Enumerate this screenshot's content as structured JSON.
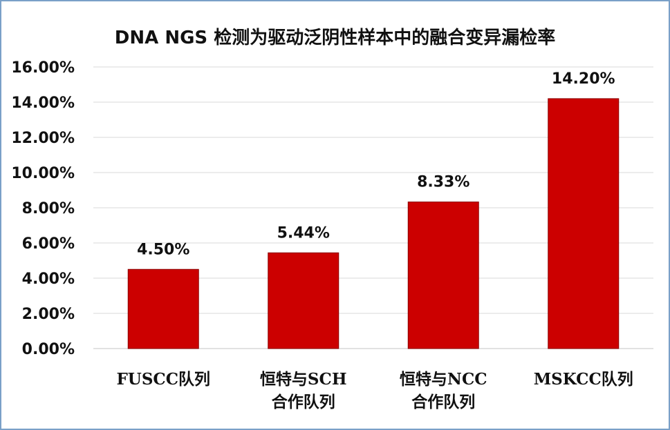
{
  "chart_data": {
    "type": "bar",
    "title": "DNA NGS 检测为驱动泛阴性样本中的融合变异漏检率",
    "categories": [
      [
        "FUSCC队列"
      ],
      [
        "恒特与SCH",
        "合作队列"
      ],
      [
        "恒特与NCC",
        "合作队列"
      ],
      [
        "MSKCC队列"
      ]
    ],
    "values": [
      4.5,
      5.44,
      8.33,
      14.2
    ],
    "value_labels": [
      "4.50%",
      "5.44%",
      "8.33%",
      "14.20%"
    ],
    "y_ticks": [
      "0.00%",
      "2.00%",
      "4.00%",
      "6.00%",
      "8.00%",
      "10.00%",
      "12.00%",
      "14.00%",
      "16.00%"
    ],
    "ylim": [
      0,
      16
    ],
    "grid": true,
    "legend": "none",
    "colors": {
      "bar": "#cc0000",
      "bar_edge": "#8a0000",
      "grid": "#d9d9d9",
      "border": "#7aa0c8"
    }
  }
}
